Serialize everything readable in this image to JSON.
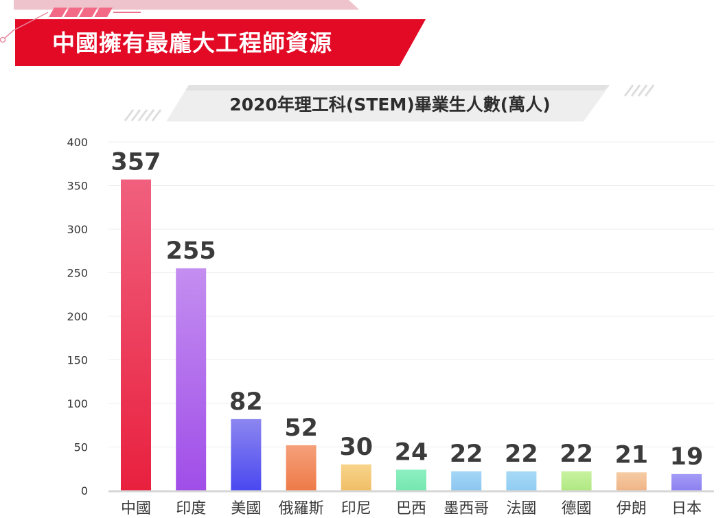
{
  "banner": {
    "title": "中國擁有最龐大工程師資源"
  },
  "chart_data": {
    "type": "bar",
    "title": "2020年理工科(STEM)畢業生人數(萬人)",
    "xlabel": "",
    "ylabel": "",
    "ylim": [
      0,
      400
    ],
    "yticks": [
      0,
      50,
      100,
      150,
      200,
      250,
      300,
      350,
      400
    ],
    "grid": true,
    "categories": [
      "中國",
      "印度",
      "美國",
      "俄羅斯",
      "印尼",
      "巴西",
      "墨西哥",
      "法國",
      "德國",
      "伊朗",
      "日本"
    ],
    "values": [
      357,
      255,
      82,
      52,
      30,
      24,
      22,
      22,
      22,
      21,
      19
    ],
    "bar_colors": [
      [
        "#f0607e",
        "#e8203e"
      ],
      [
        "#c48ef0",
        "#a04ee8"
      ],
      [
        "#8c86f0",
        "#4a48f0"
      ],
      [
        "#f5a07a",
        "#ee7a48"
      ],
      [
        "#f8d48c",
        "#f0be66"
      ],
      [
        "#8cf0c0",
        "#76e6b0"
      ],
      [
        "#a4d6f6",
        "#8cc6f0"
      ],
      [
        "#a8daf6",
        "#90ccf2"
      ],
      [
        "#c8f2a0",
        "#b0e882"
      ],
      [
        "#f6cca4",
        "#f0b488"
      ],
      [
        "#a49cf6",
        "#8c80f0"
      ]
    ]
  }
}
